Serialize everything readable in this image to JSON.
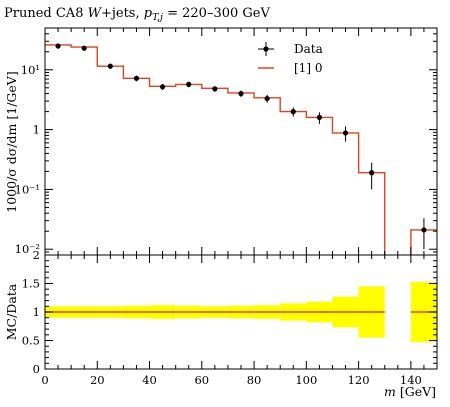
{
  "chart_data": [
    {
      "panel": "main",
      "type": "line",
      "title": "Pruned CA8 W+jets, p_{T,j} = 220–300 GeV",
      "title_parts": {
        "prefix": "Pruned CA8 ",
        "w": "W",
        "jets": "+jets, ",
        "pt": "p",
        "pt_sub": "T,j",
        "range": " = 220–300 GeV"
      },
      "ylabel": "1000/σ dσ/dm [1/GeV]",
      "yscale": "log",
      "ylim": [
        0.008,
        50
      ],
      "xlim": [
        0,
        150
      ],
      "y_tick_labels": [
        "10⁻²",
        "10⁻¹",
        "1",
        "10¹"
      ],
      "legend_position": "top-right",
      "series": [
        {
          "name": "Data",
          "style": "points",
          "color": "#000000",
          "x": [
            5,
            15,
            25,
            35,
            45,
            55,
            65,
            75,
            85,
            95,
            105,
            115,
            125,
            145
          ],
          "y": [
            25,
            23,
            11.5,
            7.2,
            5.2,
            5.7,
            4.8,
            4.0,
            3.3,
            2.0,
            1.6,
            0.88,
            0.19,
            0.021
          ],
          "yerr_lo": [
            2.5,
            2.3,
            1.2,
            0.8,
            0.6,
            0.6,
            0.5,
            0.5,
            0.5,
            0.35,
            0.35,
            0.25,
            0.09,
            0.011
          ],
          "yerr_hi": [
            2.5,
            2.3,
            1.2,
            0.8,
            0.6,
            0.6,
            0.5,
            0.5,
            0.5,
            0.35,
            0.35,
            0.25,
            0.09,
            0.012
          ]
        },
        {
          "name": "[1] 0",
          "style": "step",
          "color": "#e8401c",
          "bin_edges": [
            0,
            10,
            20,
            30,
            40,
            50,
            60,
            70,
            80,
            90,
            100,
            110,
            120,
            130,
            140,
            150
          ],
          "values": [
            26,
            24,
            11.5,
            7.2,
            5.3,
            5.7,
            4.9,
            4.1,
            3.4,
            2.0,
            1.6,
            0.88,
            0.19,
            null,
            0.021
          ]
        }
      ]
    },
    {
      "panel": "ratio",
      "type": "area",
      "ylabel": "MC/Data",
      "xlabel": "m [GeV]",
      "xlabel_parts": {
        "var": "m",
        "unit": " [GeV]"
      },
      "xlim": [
        0,
        150
      ],
      "ylim": [
        0,
        2
      ],
      "y_tick_labels": [
        "0",
        "0.5",
        "1",
        "1.5",
        "2"
      ],
      "x_tick_labels": [
        "0",
        "20",
        "40",
        "60",
        "80",
        "100",
        "120",
        "140"
      ],
      "band_color": "#ffff00",
      "line_color": "#e8401c",
      "bin_edges": [
        0,
        10,
        20,
        30,
        40,
        50,
        60,
        70,
        80,
        90,
        100,
        110,
        120,
        130,
        140,
        150
      ],
      "ratio": [
        1,
        1,
        1,
        1,
        1,
        1,
        1,
        1,
        1,
        1,
        1,
        1,
        1,
        null,
        1
      ],
      "band_lo": [
        0.9,
        0.9,
        0.9,
        0.89,
        0.88,
        0.89,
        0.9,
        0.89,
        0.88,
        0.85,
        0.82,
        0.73,
        0.55,
        null,
        0.47
      ],
      "band_hi": [
        1.1,
        1.1,
        1.1,
        1.11,
        1.12,
        1.11,
        1.1,
        1.11,
        1.12,
        1.15,
        1.18,
        1.27,
        1.45,
        null,
        1.53
      ]
    }
  ]
}
